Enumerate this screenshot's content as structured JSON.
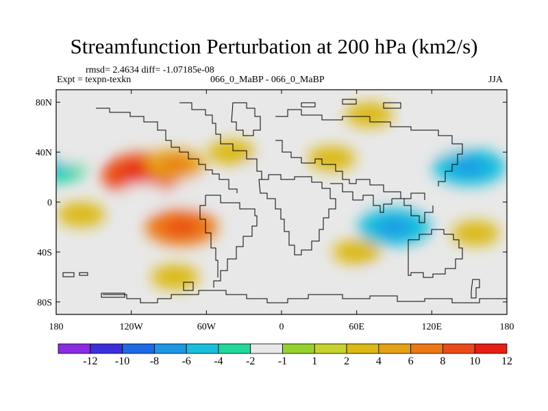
{
  "chart_data": {
    "type": "heatmap",
    "title": "Streamfunction Perturbation at 200 hPa (km2/s)",
    "stats_label": "rmsd= 2.4634 diff= -1.07185e-08",
    "experiment_label": "Expt = texpn-texkn",
    "case_label": "066_0_MaBP - 066_0_MaBP",
    "season_label": "JJA",
    "x_axis": {
      "range": [
        -180,
        180
      ],
      "ticks": [
        -180,
        -120,
        -60,
        0,
        60,
        120,
        180
      ],
      "tick_labels": [
        "180",
        "120W",
        "60W",
        "0",
        "60E",
        "120E",
        "180"
      ]
    },
    "y_axis": {
      "range": [
        -90,
        90
      ],
      "ticks": [
        80,
        40,
        0,
        -40,
        -80
      ],
      "tick_labels": [
        "80N",
        "40N",
        "0",
        "40S",
        "80S"
      ]
    },
    "colorbar": {
      "boundaries": [
        "-12",
        "-10",
        "-8",
        "-6",
        "-4",
        "-2",
        "-1",
        "1",
        "2",
        "4",
        "6",
        "8",
        "10",
        "12"
      ],
      "colors": [
        "#8a2be2",
        "#3c2fdc",
        "#1e69e6",
        "#1e96e6",
        "#19bedc",
        "#22d79b",
        "#e8e8e8",
        "#96d22d",
        "#c8d22d",
        "#dcb914",
        "#e6a014",
        "#eb7814",
        "#eb4b19",
        "#e61e14"
      ]
    },
    "field_features": [
      {
        "lon": -180,
        "lat": 28,
        "value": -4
      },
      {
        "lon": -165,
        "lat": 40,
        "value": -2
      },
      {
        "lon": -110,
        "lat": 22,
        "value": 8
      },
      {
        "lon": -85,
        "lat": 30,
        "value": 4
      },
      {
        "lon": -40,
        "lat": 40,
        "value": 2
      },
      {
        "lon": 40,
        "lat": 35,
        "value": 2
      },
      {
        "lon": 150,
        "lat": 28,
        "value": -6
      },
      {
        "lon": 130,
        "lat": 50,
        "value": -2
      },
      {
        "lon": -150,
        "lat": 65,
        "value": -2
      },
      {
        "lon": 70,
        "lat": 70,
        "value": 2
      },
      {
        "lon": -110,
        "lat": 5,
        "value": -2
      },
      {
        "lon": -70,
        "lat": 8,
        "value": -2
      },
      {
        "lon": -10,
        "lat": 25,
        "value": -2
      },
      {
        "lon": -160,
        "lat": -10,
        "value": 2
      },
      {
        "lon": -80,
        "lat": -20,
        "value": 6
      },
      {
        "lon": 90,
        "lat": -20,
        "value": -6
      },
      {
        "lon": 155,
        "lat": -25,
        "value": 2
      },
      {
        "lon": 80,
        "lat": -65,
        "value": -2
      },
      {
        "lon": -85,
        "lat": -60,
        "value": 2
      },
      {
        "lon": 60,
        "lat": -40,
        "value": 2
      }
    ]
  }
}
